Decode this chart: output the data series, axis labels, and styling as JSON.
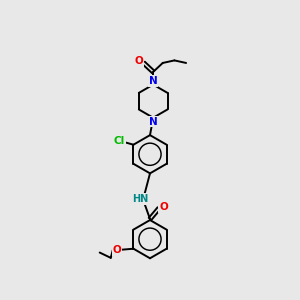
{
  "bg_color": "#e8e8e8",
  "bond_color": "#000000",
  "N_color": "#0000ee",
  "O_color": "#ee0000",
  "Cl_color": "#00bb00",
  "NH_color": "#008888",
  "line_width": 1.4,
  "figsize": [
    3.0,
    3.0
  ],
  "dpi": 100,
  "xlim": [
    0,
    10
  ],
  "ylim": [
    0,
    14
  ]
}
